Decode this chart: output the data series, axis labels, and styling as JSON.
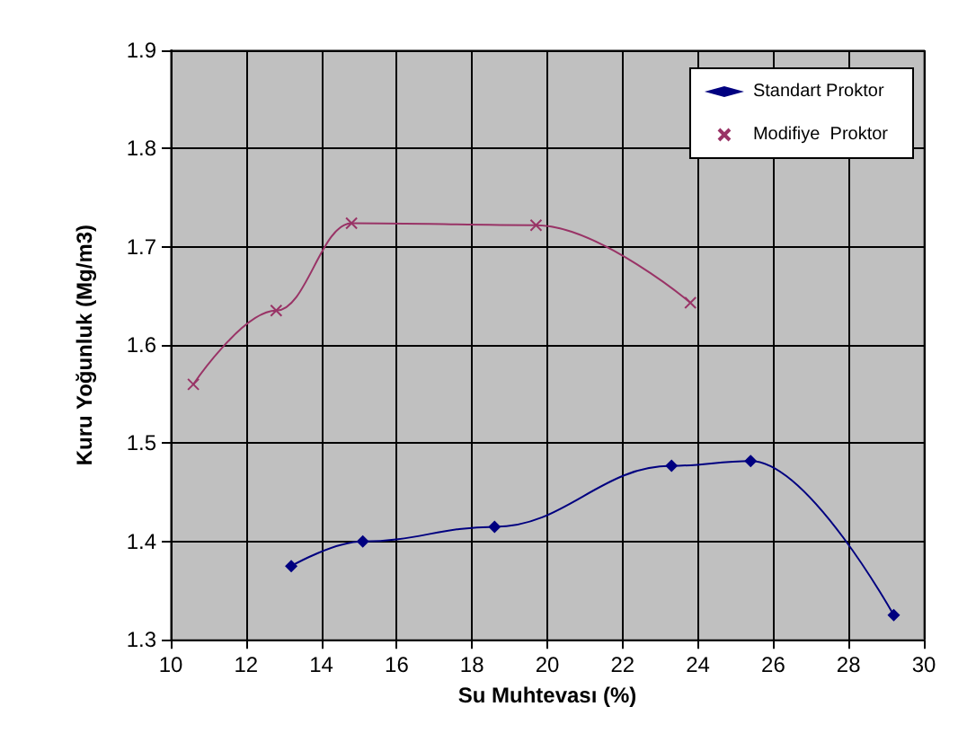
{
  "chart_data": {
    "type": "line",
    "xlabel": "Su Muhtevası (%)",
    "ylabel": "Kuru Yoğunluk (Mg/m3)",
    "xlim": [
      10,
      30
    ],
    "xticks": [
      10,
      12,
      14,
      16,
      18,
      20,
      22,
      24,
      26,
      28,
      30
    ],
    "ylim": [
      1.3,
      1.9
    ],
    "yticks": [
      1.3,
      1.4,
      1.5,
      1.6,
      1.7,
      1.8,
      1.9
    ],
    "grid": true,
    "legend": "top right",
    "series": [
      {
        "name": "Standart Proktor",
        "color": "#000080",
        "marker": "diamond",
        "x": [
          13.2,
          15.1,
          18.6,
          23.3,
          25.4,
          29.2
        ],
        "values": [
          1.375,
          1.4,
          1.415,
          1.477,
          1.482,
          1.325
        ]
      },
      {
        "name": "Modifiye  Proktor",
        "color": "#993366",
        "marker": "cross",
        "x": [
          10.6,
          12.8,
          14.8,
          19.7,
          23.8
        ],
        "values": [
          1.56,
          1.635,
          1.724,
          1.722,
          1.643
        ]
      }
    ]
  }
}
